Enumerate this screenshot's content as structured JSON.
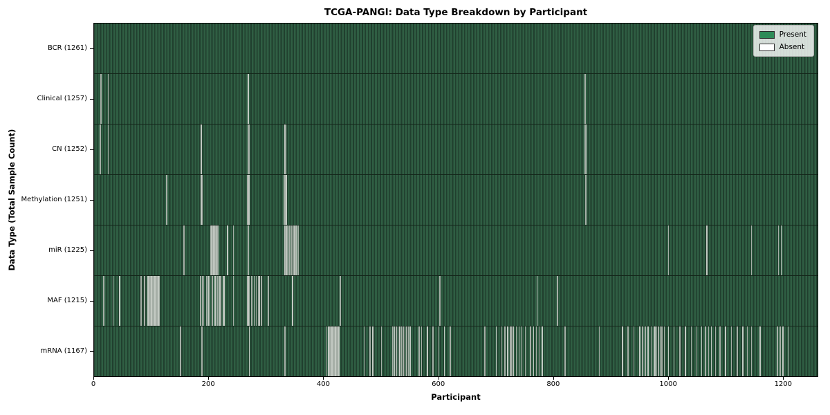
{
  "chart_data": {
    "type": "heatmap",
    "title": "TCGA-PANGI: Data Type Breakdown by Participant",
    "xlabel": "Participant",
    "ylabel": "Data Type (Total Sample Count)",
    "x_ticks": [
      0,
      200,
      400,
      600,
      800,
      1000,
      1200
    ],
    "x_range": [
      0,
      1261
    ],
    "total_participants": 1261,
    "grid": false,
    "legend_position": "upper right",
    "present_color": "#2e8b57",
    "absent_color": "#ffffff",
    "legend": [
      {
        "label": "Present",
        "color": "#2e8b57"
      },
      {
        "label": "Absent",
        "color": "#ffffff"
      }
    ],
    "rows": [
      {
        "name": "bcr",
        "label": "BCR (1261)",
        "data_type": "BCR",
        "present_count": 1261,
        "absent": []
      },
      {
        "name": "clinical",
        "label": "Clinical (1257)",
        "data_type": "Clinical",
        "present_count": 1257,
        "absent": [
          11,
          24,
          268,
          855
        ]
      },
      {
        "name": "cn",
        "label": "CN (1252)",
        "data_type": "CN",
        "present_count": 1252,
        "absent": [
          10,
          24,
          186,
          268,
          270,
          331,
          333,
          855,
          857
        ]
      },
      {
        "name": "methylation",
        "label": "Methylation (1251)",
        "data_type": "Methylation",
        "present_count": 1251,
        "absent": [
          125,
          126,
          186,
          188,
          267,
          269,
          330,
          332,
          334,
          856
        ]
      },
      {
        "name": "mir",
        "label": "miR (1225)",
        "data_type": "miR",
        "present_count": 1225,
        "absent": [
          156,
          203,
          204,
          205,
          206,
          207,
          208,
          209,
          210,
          211,
          212,
          213,
          214,
          215,
          232,
          242,
          268,
          332,
          333,
          334,
          335,
          336,
          339,
          341,
          344,
          347,
          349,
          350,
          351,
          352,
          355,
          1000,
          1067,
          1145,
          1192,
          1197
        ]
      },
      {
        "name": "maf",
        "label": "MAF (1215)",
        "data_type": "MAF",
        "present_count": 1215,
        "absent": [
          16,
          32,
          44,
          81,
          87,
          93,
          95,
          97,
          99,
          101,
          103,
          105,
          107,
          109,
          111,
          113,
          185,
          188,
          190,
          195,
          198,
          200,
          205,
          210,
          212,
          215,
          218,
          220,
          224,
          226,
          242,
          266,
          268,
          270,
          274,
          278,
          282,
          286,
          288,
          291,
          303,
          345,
          428,
          602,
          771,
          807
        ]
      },
      {
        "name": "mrna",
        "label": "mRNA (1167)",
        "data_type": "mRNA",
        "present_count": 1167,
        "absent": [
          150,
          187,
          270,
          332,
          405,
          408,
          410,
          412,
          414,
          416,
          418,
          420,
          422,
          424,
          426,
          470,
          480,
          485,
          500,
          520,
          523,
          526,
          529,
          532,
          535,
          538,
          541,
          544,
          547,
          550,
          566,
          570,
          580,
          590,
          600,
          610,
          620,
          680,
          700,
          710,
          715,
          720,
          725,
          727,
          730,
          735,
          740,
          745,
          751,
          760,
          765,
          770,
          775,
          780,
          820,
          880,
          920,
          930,
          940,
          950,
          955,
          960,
          965,
          970,
          975,
          977,
          980,
          983,
          986,
          989,
          993,
          1000,
          1010,
          1020,
          1030,
          1040,
          1050,
          1058,
          1065,
          1070,
          1075,
          1082,
          1090,
          1100,
          1110,
          1120,
          1130,
          1138,
          1145,
          1160,
          1190,
          1195,
          1200,
          1210
        ]
      }
    ]
  }
}
